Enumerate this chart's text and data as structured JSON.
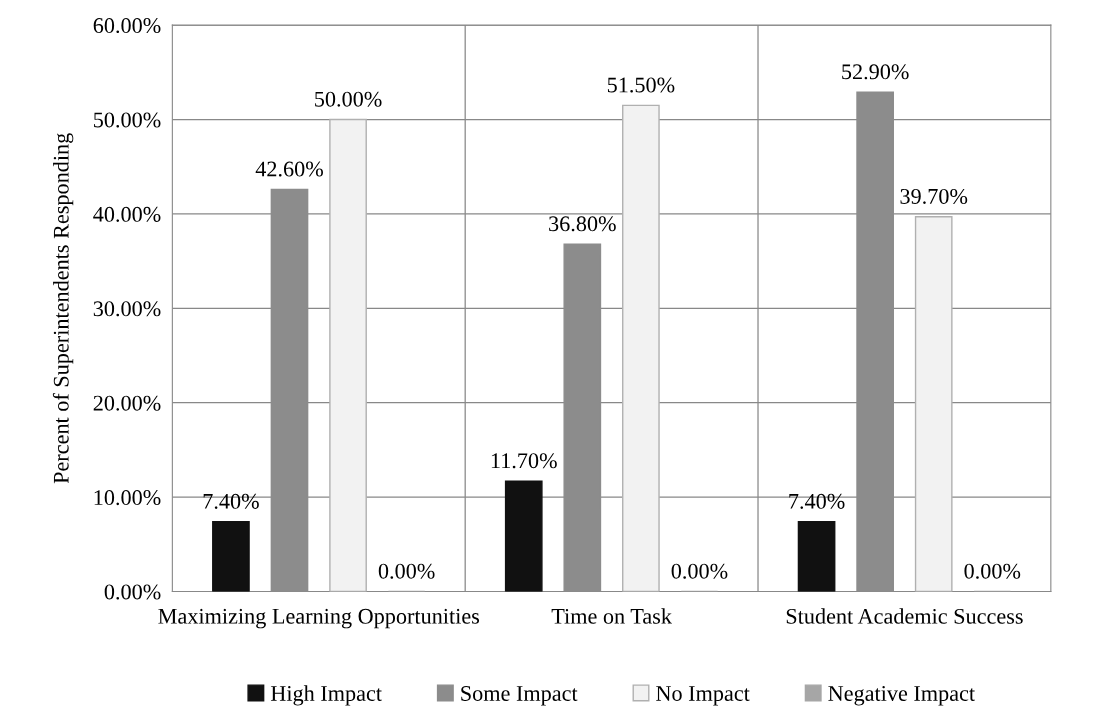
{
  "chart_data": {
    "type": "bar",
    "ylabel": "Percent of Superintendents Responding",
    "categories": [
      "Maximizing Learning Opportunities",
      "Time on Task",
      "Student Academic Success"
    ],
    "series": [
      {
        "name": "High Impact",
        "color": "#111111",
        "values": [
          7.4,
          11.7,
          7.4
        ],
        "value_labels": [
          "7.40%",
          "11.70%",
          "7.40%"
        ]
      },
      {
        "name": "Some Impact",
        "color": "#8c8c8c",
        "values": [
          42.6,
          36.8,
          52.9
        ],
        "value_labels": [
          "42.60%",
          "36.80%",
          "52.90%"
        ]
      },
      {
        "name": "No Impact",
        "color": "#f2f2f2",
        "values": [
          50.0,
          51.5,
          39.7
        ],
        "value_labels": [
          "50.00%",
          "51.50%",
          "39.70%"
        ]
      },
      {
        "name": "Negative Impact",
        "color": "#a6a6a6",
        "values": [
          0.0,
          0.0,
          0.0
        ],
        "value_labels": [
          "0.00%",
          "0.00%",
          "0.00%"
        ]
      }
    ],
    "ylim": [
      0,
      60
    ],
    "yticks": [
      {
        "value": 0,
        "label": "0.00%"
      },
      {
        "value": 10,
        "label": "10.00%"
      },
      {
        "value": 20,
        "label": "20.00%"
      },
      {
        "value": 30,
        "label": "30.00%"
      },
      {
        "value": 40,
        "label": "40.00%"
      },
      {
        "value": 50,
        "label": "50.00%"
      },
      {
        "value": 60,
        "label": "60.00%"
      }
    ],
    "grid": true,
    "legend": "bottom"
  }
}
